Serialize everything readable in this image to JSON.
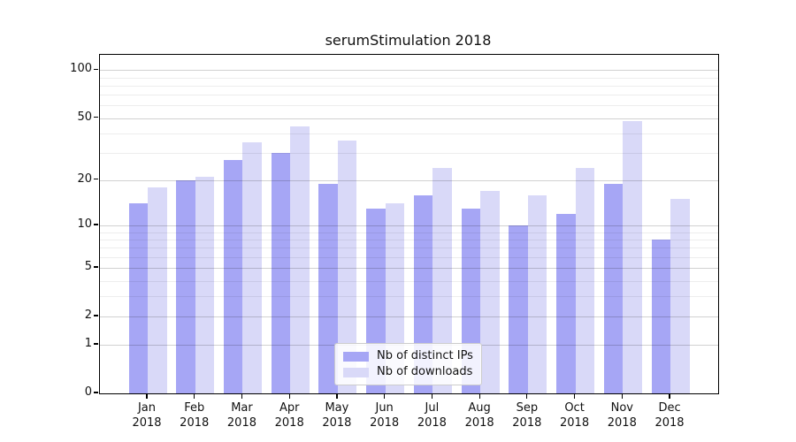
{
  "title": "serumStimulation 2018",
  "legend": {
    "items": [
      {
        "label": "Nb of distinct IPs",
        "color": "#a6a6f5"
      },
      {
        "label": "Nb of downloads",
        "color": "#d9d9f8"
      }
    ]
  },
  "axes": {
    "y_tick_labels": [
      "100",
      "50",
      "20",
      "10",
      "5",
      "2",
      "1",
      "0"
    ],
    "x_year_label": "2018"
  },
  "chart_data": {
    "type": "bar",
    "title": "serumStimulation 2018",
    "xlabel": "",
    "ylabel": "",
    "yscale": "log1p",
    "ylim": [
      0,
      125
    ],
    "grid": true,
    "legend_position": "lower center",
    "categories": [
      "Jan",
      "Feb",
      "Mar",
      "Apr",
      "May",
      "Jun",
      "Jul",
      "Aug",
      "Sep",
      "Oct",
      "Nov",
      "Dec"
    ],
    "year": "2018",
    "yticks": [
      0,
      1,
      2,
      5,
      10,
      20,
      50,
      100
    ],
    "minor_yticks": [
      3,
      4,
      6,
      7,
      8,
      9,
      30,
      40,
      60,
      70,
      80,
      90
    ],
    "series": [
      {
        "name": "Nb of distinct IPs",
        "color": "#a6a6f5",
        "values": [
          14,
          20,
          27,
          30,
          19,
          13,
          16,
          13,
          10,
          12,
          19,
          8
        ]
      },
      {
        "name": "Nb of downloads",
        "color": "#d9d9f8",
        "values": [
          18,
          21,
          35,
          44,
          36,
          14,
          24,
          17,
          16,
          24,
          48,
          15
        ]
      }
    ]
  }
}
